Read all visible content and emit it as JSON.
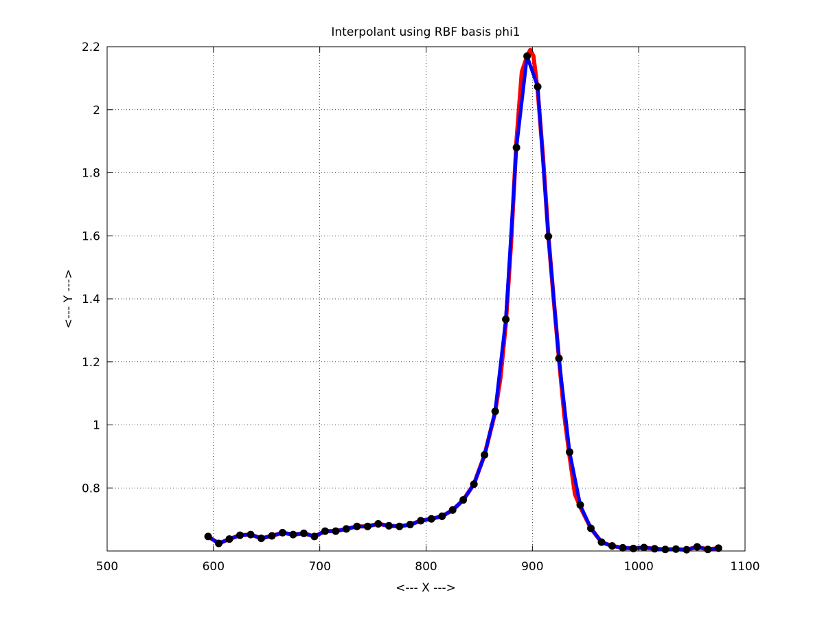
{
  "chart_data": {
    "type": "line",
    "title": "Interpolant using RBF basis phi1",
    "xlabel": "<--- X --->",
    "ylabel": "<--- Y --->",
    "xlim": [
      500,
      1100
    ],
    "ylim": [
      0.6,
      2.2
    ],
    "xticks": [
      500,
      600,
      700,
      800,
      900,
      1000,
      1100
    ],
    "yticks": [
      0.8,
      1,
      1.2,
      1.4,
      1.6,
      1.8,
      2,
      2.2
    ],
    "xtick_labels": [
      "500",
      "600",
      "700",
      "800",
      "900",
      "1000",
      "1100"
    ],
    "ytick_labels": [
      "0.8",
      "1",
      "1.2",
      "1.4",
      "1.6",
      "1.8",
      "2",
      "2.2"
    ],
    "grid": true,
    "series": [
      {
        "role": "red-curve",
        "color": "#ff0000",
        "x": [
          595,
          605,
          615,
          625,
          635,
          645,
          655,
          665,
          675,
          685,
          695,
          705,
          715,
          725,
          735,
          745,
          755,
          765,
          775,
          785,
          795,
          805,
          815,
          825,
          835,
          845,
          855,
          865,
          870,
          875,
          880,
          885,
          890,
          895,
          898,
          901,
          905,
          910,
          915,
          920,
          925,
          930,
          935,
          940,
          945,
          955,
          965,
          975,
          985,
          995,
          1005,
          1015,
          1025,
          1035,
          1045,
          1055,
          1065,
          1075
        ],
        "y": [
          0.646,
          0.624,
          0.638,
          0.65,
          0.652,
          0.64,
          0.648,
          0.658,
          0.652,
          0.656,
          0.646,
          0.663,
          0.663,
          0.67,
          0.678,
          0.678,
          0.686,
          0.68,
          0.678,
          0.684,
          0.696,
          0.702,
          0.71,
          0.73,
          0.762,
          0.812,
          0.905,
          1.04,
          1.15,
          1.32,
          1.58,
          1.9,
          2.12,
          2.17,
          2.19,
          2.17,
          2.06,
          1.85,
          1.6,
          1.4,
          1.21,
          1.03,
          0.9,
          0.78,
          0.74,
          0.672,
          0.628,
          0.616,
          0.61,
          0.608,
          0.611,
          0.607,
          0.605,
          0.606,
          0.604,
          0.613,
          0.605,
          0.609
        ]
      },
      {
        "role": "blue-curve",
        "color": "#0000ff",
        "x": [
          595,
          605,
          615,
          625,
          635,
          645,
          655,
          665,
          675,
          685,
          695,
          705,
          715,
          725,
          735,
          745,
          755,
          765,
          775,
          785,
          795,
          805,
          815,
          825,
          835,
          845,
          855,
          865,
          875,
          885,
          895,
          905,
          915,
          925,
          935,
          945,
          955,
          965,
          975,
          985,
          995,
          1005,
          1015,
          1025,
          1035,
          1045,
          1055,
          1065,
          1075
        ],
        "y": [
          0.646,
          0.624,
          0.638,
          0.65,
          0.652,
          0.64,
          0.648,
          0.658,
          0.652,
          0.656,
          0.646,
          0.663,
          0.663,
          0.67,
          0.678,
          0.678,
          0.686,
          0.68,
          0.678,
          0.684,
          0.696,
          0.702,
          0.71,
          0.73,
          0.762,
          0.812,
          0.905,
          1.043,
          1.335,
          1.88,
          2.17,
          2.073,
          1.598,
          1.211,
          0.914,
          0.746,
          0.672,
          0.628,
          0.616,
          0.61,
          0.608,
          0.611,
          0.607,
          0.605,
          0.606,
          0.604,
          0.613,
          0.605,
          0.609
        ]
      },
      {
        "role": "data-points",
        "color": "#000000",
        "marker": "circle",
        "x": [
          595,
          605,
          615,
          625,
          635,
          645,
          655,
          665,
          675,
          685,
          695,
          705,
          715,
          725,
          735,
          745,
          755,
          765,
          775,
          785,
          795,
          805,
          815,
          825,
          835,
          845,
          855,
          865,
          875,
          885,
          895,
          905,
          915,
          925,
          935,
          945,
          955,
          965,
          975,
          985,
          995,
          1005,
          1015,
          1025,
          1035,
          1045,
          1055,
          1065,
          1075
        ],
        "y": [
          0.646,
          0.624,
          0.638,
          0.65,
          0.652,
          0.64,
          0.648,
          0.658,
          0.652,
          0.656,
          0.646,
          0.663,
          0.663,
          0.67,
          0.678,
          0.678,
          0.686,
          0.68,
          0.678,
          0.684,
          0.696,
          0.702,
          0.71,
          0.73,
          0.762,
          0.812,
          0.905,
          1.043,
          1.335,
          1.88,
          2.17,
          2.073,
          1.598,
          1.211,
          0.914,
          0.746,
          0.672,
          0.628,
          0.616,
          0.61,
          0.608,
          0.611,
          0.607,
          0.605,
          0.606,
          0.604,
          0.613,
          0.605,
          0.609
        ]
      }
    ]
  }
}
